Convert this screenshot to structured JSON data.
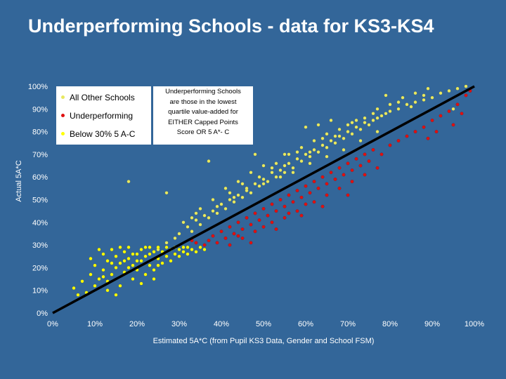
{
  "slide": {
    "title": "Underperforming Schools - data for KS3-KS4"
  },
  "legend": {
    "items": [
      {
        "label": "All Other Schools",
        "color": "#e8e860"
      },
      {
        "label": "Underperforming",
        "color": "#e01010"
      },
      {
        "label": "Below 30% 5 A-C",
        "color": "#ffff00"
      }
    ]
  },
  "note": {
    "lines": [
      "Underperforming Schools",
      "are those in the lowest",
      "quartile value-added for",
      "EITHER Capped Points",
      "Score OR 5 A*- C"
    ]
  },
  "chart_data": {
    "type": "scatter",
    "xlabel": "Estimated 5A*C (from Pupil KS3 Data, Gender and School FSM)",
    "ylabel": "Actual 5A*C",
    "xlim": [
      0,
      100
    ],
    "ylim": [
      0,
      100
    ],
    "x_ticks": [
      "0%",
      "10%",
      "20%",
      "30%",
      "40%",
      "50%",
      "60%",
      "70%",
      "80%",
      "90%",
      "100%"
    ],
    "y_ticks": [
      "0%",
      "10%",
      "20%",
      "30%",
      "40%",
      "50%",
      "60%",
      "70%",
      "80%",
      "90%",
      "100%"
    ],
    "grid": false,
    "reference_line": {
      "from": [
        0,
        0
      ],
      "to": [
        100,
        100
      ],
      "color": "#000000"
    },
    "series": [
      {
        "name": "All Other Schools",
        "color": "#e8e860",
        "points": [
          [
            25,
            28
          ],
          [
            27,
            31
          ],
          [
            29,
            33
          ],
          [
            30,
            35
          ],
          [
            32,
            38
          ],
          [
            33,
            36
          ],
          [
            34,
            41
          ],
          [
            35,
            39
          ],
          [
            36,
            43
          ],
          [
            37,
            42
          ],
          [
            38,
            45
          ],
          [
            39,
            44
          ],
          [
            40,
            48
          ],
          [
            41,
            46
          ],
          [
            42,
            50
          ],
          [
            43,
            49
          ],
          [
            44,
            52
          ],
          [
            45,
            51
          ],
          [
            46,
            55
          ],
          [
            47,
            53
          ],
          [
            48,
            57
          ],
          [
            49,
            56
          ],
          [
            50,
            59
          ],
          [
            51,
            58
          ],
          [
            52,
            62
          ],
          [
            53,
            60
          ],
          [
            54,
            63
          ],
          [
            55,
            62
          ],
          [
            56,
            66
          ],
          [
            57,
            64
          ],
          [
            58,
            68
          ],
          [
            59,
            67
          ],
          [
            60,
            70
          ],
          [
            61,
            69
          ],
          [
            62,
            72
          ],
          [
            63,
            71
          ],
          [
            64,
            74
          ],
          [
            65,
            73
          ],
          [
            66,
            76
          ],
          [
            67,
            75
          ],
          [
            68,
            78
          ],
          [
            69,
            77
          ],
          [
            70,
            80
          ],
          [
            71,
            79
          ],
          [
            72,
            82
          ],
          [
            73,
            81
          ],
          [
            74,
            84
          ],
          [
            75,
            83
          ],
          [
            76,
            85
          ],
          [
            77,
            86
          ],
          [
            78,
            87
          ],
          [
            79,
            88
          ],
          [
            80,
            89
          ],
          [
            82,
            90
          ],
          [
            84,
            92
          ],
          [
            86,
            93
          ],
          [
            88,
            94
          ],
          [
            90,
            95
          ],
          [
            92,
            97
          ],
          [
            94,
            98
          ],
          [
            96,
            99
          ],
          [
            98,
            100
          ],
          [
            41,
            55
          ],
          [
            44,
            58
          ],
          [
            47,
            62
          ],
          [
            50,
            65
          ],
          [
            53,
            66
          ],
          [
            56,
            70
          ],
          [
            59,
            73
          ],
          [
            62,
            76
          ],
          [
            65,
            79
          ],
          [
            68,
            81
          ],
          [
            71,
            84
          ],
          [
            74,
            86
          ],
          [
            77,
            90
          ],
          [
            80,
            92
          ],
          [
            83,
            95
          ],
          [
            86,
            97
          ],
          [
            89,
            99
          ],
          [
            38,
            50
          ],
          [
            35,
            46
          ],
          [
            33,
            42
          ],
          [
            45,
            57
          ],
          [
            52,
            64
          ],
          [
            58,
            71
          ],
          [
            64,
            77
          ],
          [
            70,
            83
          ],
          [
            76,
            88
          ],
          [
            82,
            93
          ],
          [
            88,
            96
          ],
          [
            18,
            58
          ],
          [
            27,
            53
          ],
          [
            37,
            67
          ],
          [
            48,
            70
          ],
          [
            55,
            70
          ],
          [
            63,
            83
          ],
          [
            66,
            85
          ],
          [
            95,
            90
          ],
          [
            79,
            96
          ],
          [
            60,
            82
          ],
          [
            42,
            53
          ],
          [
            46,
            54
          ],
          [
            50,
            57
          ],
          [
            54,
            60
          ],
          [
            57,
            62
          ],
          [
            61,
            66
          ],
          [
            65,
            69
          ],
          [
            69,
            72
          ],
          [
            73,
            76
          ],
          [
            77,
            80
          ],
          [
            31,
            40
          ],
          [
            34,
            44
          ],
          [
            39,
            47
          ],
          [
            43,
            51
          ],
          [
            49,
            60
          ],
          [
            55,
            65
          ],
          [
            61,
            71
          ],
          [
            67,
            78
          ],
          [
            72,
            85
          ],
          [
            85,
            91
          ]
        ]
      },
      {
        "name": "Underperforming",
        "color": "#e01010",
        "points": [
          [
            37,
            32
          ],
          [
            38,
            34
          ],
          [
            39,
            31
          ],
          [
            40,
            36
          ],
          [
            41,
            33
          ],
          [
            42,
            38
          ],
          [
            43,
            35
          ],
          [
            44,
            40
          ],
          [
            45,
            37
          ],
          [
            46,
            42
          ],
          [
            47,
            39
          ],
          [
            48,
            44
          ],
          [
            49,
            41
          ],
          [
            50,
            46
          ],
          [
            51,
            43
          ],
          [
            52,
            48
          ],
          [
            53,
            45
          ],
          [
            54,
            50
          ],
          [
            55,
            47
          ],
          [
            56,
            52
          ],
          [
            57,
            49
          ],
          [
            58,
            54
          ],
          [
            59,
            51
          ],
          [
            60,
            56
          ],
          [
            61,
            53
          ],
          [
            62,
            58
          ],
          [
            63,
            55
          ],
          [
            64,
            60
          ],
          [
            65,
            57
          ],
          [
            66,
            62
          ],
          [
            67,
            59
          ],
          [
            68,
            64
          ],
          [
            69,
            61
          ],
          [
            70,
            66
          ],
          [
            71,
            63
          ],
          [
            72,
            68
          ],
          [
            73,
            65
          ],
          [
            74,
            70
          ],
          [
            75,
            67
          ],
          [
            76,
            72
          ],
          [
            78,
            70
          ],
          [
            80,
            74
          ],
          [
            82,
            76
          ],
          [
            84,
            78
          ],
          [
            86,
            80
          ],
          [
            88,
            82
          ],
          [
            90,
            85
          ],
          [
            92,
            87
          ],
          [
            94,
            89
          ],
          [
            96,
            92
          ],
          [
            98,
            96
          ],
          [
            99,
            98
          ],
          [
            42,
            30
          ],
          [
            45,
            33
          ],
          [
            48,
            36
          ],
          [
            52,
            40
          ],
          [
            55,
            42
          ],
          [
            58,
            45
          ],
          [
            62,
            49
          ],
          [
            65,
            52
          ],
          [
            68,
            55
          ],
          [
            71,
            58
          ],
          [
            74,
            61
          ],
          [
            77,
            64
          ],
          [
            47,
            31
          ],
          [
            53,
            37
          ],
          [
            59,
            43
          ],
          [
            64,
            47
          ],
          [
            70,
            52
          ],
          [
            36,
            30
          ],
          [
            34,
            31
          ],
          [
            33,
            32
          ],
          [
            89,
            77
          ],
          [
            91,
            80
          ],
          [
            95,
            83
          ],
          [
            97,
            88
          ],
          [
            60,
            48
          ],
          [
            56,
            44
          ],
          [
            50,
            38
          ],
          [
            44,
            34
          ]
        ]
      },
      {
        "name": "Below 30% 5 A-C",
        "color": "#ffff00",
        "points": [
          [
            5,
            11
          ],
          [
            6,
            8
          ],
          [
            7,
            14
          ],
          [
            8,
            9
          ],
          [
            9,
            17
          ],
          [
            10,
            12
          ],
          [
            10,
            21
          ],
          [
            11,
            15
          ],
          [
            12,
            19
          ],
          [
            12,
            26
          ],
          [
            13,
            14
          ],
          [
            13,
            23
          ],
          [
            14,
            28
          ],
          [
            14,
            17
          ],
          [
            15,
            20
          ],
          [
            15,
            25
          ],
          [
            16,
            12
          ],
          [
            16,
            22
          ],
          [
            17,
            27
          ],
          [
            17,
            18
          ],
          [
            18,
            24
          ],
          [
            18,
            29
          ],
          [
            19,
            15
          ],
          [
            19,
            21
          ],
          [
            20,
            26
          ],
          [
            20,
            19
          ],
          [
            21,
            28
          ],
          [
            21,
            23
          ],
          [
            22,
            17
          ],
          [
            22,
            25
          ],
          [
            23,
            29
          ],
          [
            23,
            21
          ],
          [
            24,
            27
          ],
          [
            24,
            19
          ],
          [
            25,
            24
          ],
          [
            25,
            29
          ],
          [
            26,
            22
          ],
          [
            26,
            27
          ],
          [
            27,
            25
          ],
          [
            27,
            29
          ],
          [
            28,
            23
          ],
          [
            28,
            28
          ],
          [
            29,
            26
          ],
          [
            29,
            29
          ],
          [
            30,
            25
          ],
          [
            30,
            28
          ],
          [
            31,
            27
          ],
          [
            31,
            29
          ],
          [
            32,
            26
          ],
          [
            32,
            29
          ],
          [
            33,
            28
          ],
          [
            34,
            27
          ],
          [
            35,
            29
          ],
          [
            36,
            28
          ],
          [
            13,
            10
          ],
          [
            15,
            8
          ],
          [
            11,
            28
          ],
          [
            9,
            24
          ],
          [
            21,
            13
          ],
          [
            24,
            15
          ],
          [
            16,
            29
          ],
          [
            18,
            20
          ],
          [
            20,
            23
          ],
          [
            22,
            29
          ],
          [
            19,
            26
          ],
          [
            17,
            23
          ],
          [
            23,
            26
          ],
          [
            25,
            21
          ],
          [
            14,
            22
          ],
          [
            12,
            16
          ]
        ]
      }
    ]
  }
}
